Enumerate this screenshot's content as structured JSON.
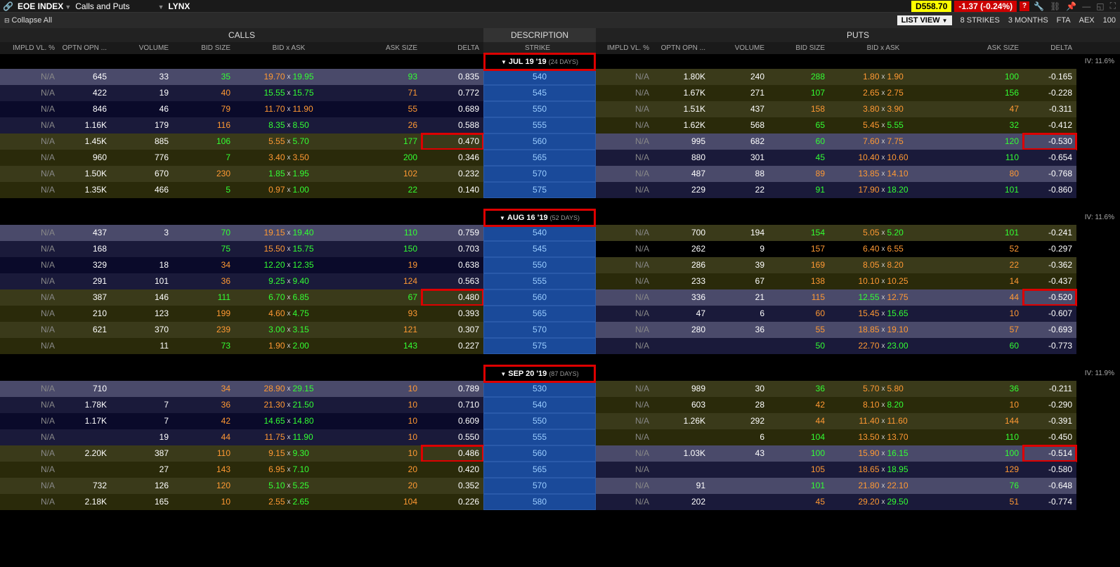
{
  "topbar": {
    "symbol": "EOE INDEX",
    "mode": "Calls and Puts",
    "broker": "LYNX",
    "price": "D558.70",
    "change": "-1.37 (-0.24%)"
  },
  "toolbar": {
    "collapse": "Collapse All",
    "listview": "LIST VIEW",
    "strikes": "8 STRIKES",
    "months": "3 MONTHS",
    "fta": "FTA",
    "aex": "AEX",
    "hundred": "100"
  },
  "headers": {
    "calls": "CALLS",
    "puts": "PUTS",
    "desc": "DESCRIPTION",
    "cols": {
      "iv": "IMPLD VL. %",
      "opn": "OPTN OPN ...",
      "vol": "VOLUME",
      "bsz": "BID SIZE",
      "ba": "BID x  ASK",
      "asz": "ASK SIZE",
      "del": "DELTA",
      "strike": "STRIKE"
    }
  },
  "expiries": [
    {
      "label": "JUL 19 '19",
      "days": "(24 DAYS)",
      "iv": "IV: 11.6%",
      "rows": [
        {
          "c": {
            "iv": "N/A",
            "opn": "645",
            "vol": "33",
            "bsz": "35",
            "bid": "19.70",
            "ask": "19.95",
            "asz": "93",
            "del": "0.835",
            "bg": "slate",
            "bc": "o",
            "ac": "g",
            "szc": "g"
          },
          "strike": "540",
          "p": {
            "iv": "N/A",
            "opn": "1.80K",
            "vol": "240",
            "bsz": "288",
            "bid": "1.80",
            "ask": "1.90",
            "asz": "100",
            "del": "-0.165",
            "bg": "olive",
            "bc": "o",
            "ac": "o",
            "szc": "g"
          }
        },
        {
          "c": {
            "iv": "N/A",
            "opn": "422",
            "vol": "19",
            "bsz": "40",
            "bid": "15.55",
            "ask": "15.75",
            "asz": "71",
            "del": "0.772",
            "bg": "navy",
            "bc": "g",
            "ac": "g",
            "szc": "o"
          },
          "strike": "545",
          "p": {
            "iv": "N/A",
            "opn": "1.67K",
            "vol": "271",
            "bsz": "107",
            "bid": "2.65",
            "ask": "2.75",
            "asz": "156",
            "del": "-0.228",
            "bg": "olive-d",
            "bc": "o",
            "ac": "o",
            "szc": "g"
          }
        },
        {
          "c": {
            "iv": "N/A",
            "opn": "846",
            "vol": "46",
            "bsz": "79",
            "bid": "11.70",
            "ask": "11.90",
            "asz": "55",
            "del": "0.689",
            "bg": "navy-d",
            "bc": "o",
            "ac": "o",
            "szc": "o"
          },
          "strike": "550",
          "p": {
            "iv": "N/A",
            "opn": "1.51K",
            "vol": "437",
            "bsz": "158",
            "bid": "3.80",
            "ask": "3.90",
            "asz": "47",
            "del": "-0.311",
            "bg": "olive",
            "bc": "o",
            "ac": "o",
            "szc": "o"
          }
        },
        {
          "c": {
            "iv": "N/A",
            "opn": "1.16K",
            "vol": "179",
            "bsz": "116",
            "bid": "8.35",
            "ask": "8.50",
            "asz": "26",
            "del": "0.588",
            "bg": "navy",
            "bc": "g",
            "ac": "g",
            "szc": "o"
          },
          "strike": "555",
          "p": {
            "iv": "N/A",
            "opn": "1.62K",
            "vol": "568",
            "bsz": "65",
            "bid": "5.45",
            "ask": "5.55",
            "asz": "32",
            "del": "-0.412",
            "bg": "olive-d",
            "bc": "o",
            "ac": "g",
            "szc": "g"
          }
        },
        {
          "c": {
            "iv": "N/A",
            "opn": "1.45K",
            "vol": "885",
            "bsz": "106",
            "bid": "5.55",
            "ask": "5.70",
            "asz": "177",
            "del": "0.470",
            "bg": "olive",
            "bc": "o",
            "ac": "g",
            "szc": "g",
            "hlDel": true
          },
          "strike": "560",
          "p": {
            "iv": "N/A",
            "opn": "995",
            "vol": "682",
            "bsz": "60",
            "bid": "7.60",
            "ask": "7.75",
            "asz": "120",
            "del": "-0.530",
            "bg": "slate",
            "bc": "o",
            "ac": "o",
            "szc": "g",
            "hlDel": true
          }
        },
        {
          "c": {
            "iv": "N/A",
            "opn": "960",
            "vol": "776",
            "bsz": "7",
            "bid": "3.40",
            "ask": "3.50",
            "asz": "200",
            "del": "0.346",
            "bg": "olive-d",
            "bc": "o",
            "ac": "o",
            "szc": "g"
          },
          "strike": "565",
          "p": {
            "iv": "N/A",
            "opn": "880",
            "vol": "301",
            "bsz": "45",
            "bid": "10.40",
            "ask": "10.60",
            "asz": "110",
            "del": "-0.654",
            "bg": "navy",
            "bc": "o",
            "ac": "o",
            "szc": "g"
          }
        },
        {
          "c": {
            "iv": "N/A",
            "opn": "1.50K",
            "vol": "670",
            "bsz": "230",
            "bid": "1.85",
            "ask": "1.95",
            "asz": "102",
            "del": "0.232",
            "bg": "olive",
            "bc": "g",
            "ac": "g",
            "szc": "o"
          },
          "strike": "570",
          "p": {
            "iv": "N/A",
            "opn": "487",
            "vol": "88",
            "bsz": "89",
            "bid": "13.85",
            "ask": "14.10",
            "asz": "80",
            "del": "-0.768",
            "bg": "slate",
            "bc": "o",
            "ac": "o",
            "szc": "o"
          }
        },
        {
          "c": {
            "iv": "N/A",
            "opn": "1.35K",
            "vol": "466",
            "bsz": "5",
            "bid": "0.97",
            "ask": "1.00",
            "asz": "22",
            "del": "0.140",
            "bg": "olive-d",
            "bc": "o",
            "ac": "g",
            "szc": "g"
          },
          "strike": "575",
          "p": {
            "iv": "N/A",
            "opn": "229",
            "vol": "22",
            "bsz": "91",
            "bid": "17.90",
            "ask": "18.20",
            "asz": "101",
            "del": "-0.860",
            "bg": "navy",
            "bc": "o",
            "ac": "g",
            "szc": "g"
          }
        }
      ]
    },
    {
      "label": "AUG 16 '19",
      "days": "(52 DAYS)",
      "iv": "IV: 11.6%",
      "rows": [
        {
          "c": {
            "iv": "N/A",
            "opn": "437",
            "vol": "3",
            "bsz": "70",
            "bid": "19.15",
            "ask": "19.40",
            "asz": "110",
            "del": "0.759",
            "bg": "slate",
            "bc": "o",
            "ac": "g",
            "szc": "g"
          },
          "strike": "540",
          "p": {
            "iv": "N/A",
            "opn": "700",
            "vol": "194",
            "bsz": "154",
            "bid": "5.05",
            "ask": "5.20",
            "asz": "101",
            "del": "-0.241",
            "bg": "olive",
            "bc": "o",
            "ac": "g",
            "szc": "g"
          }
        },
        {
          "c": {
            "iv": "N/A",
            "opn": "168",
            "vol": "",
            "bsz": "75",
            "bid": "15.50",
            "ask": "15.75",
            "asz": "150",
            "del": "0.703",
            "bg": "navy",
            "bc": "o",
            "ac": "g",
            "szc": "g"
          },
          "strike": "545",
          "p": {
            "iv": "N/A",
            "opn": "262",
            "vol": "9",
            "bsz": "157",
            "bid": "6.40",
            "ask": "6.55",
            "asz": "52",
            "del": "-0.297",
            "bg": "black",
            "bc": "o",
            "ac": "o",
            "szc": "o"
          }
        },
        {
          "c": {
            "iv": "N/A",
            "opn": "329",
            "vol": "18",
            "bsz": "34",
            "bid": "12.20",
            "ask": "12.35",
            "asz": "19",
            "del": "0.638",
            "bg": "navy-d",
            "bc": "g",
            "ac": "g",
            "szc": "o"
          },
          "strike": "550",
          "p": {
            "iv": "N/A",
            "opn": "286",
            "vol": "39",
            "bsz": "169",
            "bid": "8.05",
            "ask": "8.20",
            "asz": "22",
            "del": "-0.362",
            "bg": "olive",
            "bc": "o",
            "ac": "o",
            "szc": "o"
          }
        },
        {
          "c": {
            "iv": "N/A",
            "opn": "291",
            "vol": "101",
            "bsz": "36",
            "bid": "9.25",
            "ask": "9.40",
            "asz": "124",
            "del": "0.563",
            "bg": "navy",
            "bc": "g",
            "ac": "g",
            "szc": "o"
          },
          "strike": "555",
          "p": {
            "iv": "N/A",
            "opn": "233",
            "vol": "67",
            "bsz": "138",
            "bid": "10.10",
            "ask": "10.25",
            "asz": "14",
            "del": "-0.437",
            "bg": "olive-d",
            "bc": "o",
            "ac": "o",
            "szc": "o"
          }
        },
        {
          "c": {
            "iv": "N/A",
            "opn": "387",
            "vol": "146",
            "bsz": "111",
            "bid": "6.70",
            "ask": "6.85",
            "asz": "67",
            "del": "0.480",
            "bg": "olive",
            "bc": "g",
            "ac": "g",
            "szc": "g",
            "hlDel": true
          },
          "strike": "560",
          "p": {
            "iv": "N/A",
            "opn": "336",
            "vol": "21",
            "bsz": "115",
            "bid": "12.55",
            "ask": "12.75",
            "asz": "44",
            "del": "-0.520",
            "bg": "slate",
            "bc": "g",
            "ac": "o",
            "szc": "o",
            "hlDel": true
          }
        },
        {
          "c": {
            "iv": "N/A",
            "opn": "210",
            "vol": "123",
            "bsz": "199",
            "bid": "4.60",
            "ask": "4.75",
            "asz": "93",
            "del": "0.393",
            "bg": "olive-d",
            "bc": "o",
            "ac": "g",
            "szc": "o"
          },
          "strike": "565",
          "p": {
            "iv": "N/A",
            "opn": "47",
            "vol": "6",
            "bsz": "60",
            "bid": "15.45",
            "ask": "15.65",
            "asz": "10",
            "del": "-0.607",
            "bg": "navy",
            "bc": "o",
            "ac": "g",
            "szc": "o"
          }
        },
        {
          "c": {
            "iv": "N/A",
            "opn": "621",
            "vol": "370",
            "bsz": "239",
            "bid": "3.00",
            "ask": "3.15",
            "asz": "121",
            "del": "0.307",
            "bg": "olive",
            "bc": "g",
            "ac": "g",
            "szc": "o"
          },
          "strike": "570",
          "p": {
            "iv": "N/A",
            "opn": "280",
            "vol": "36",
            "bsz": "55",
            "bid": "18.85",
            "ask": "19.10",
            "asz": "57",
            "del": "-0.693",
            "bg": "slate",
            "bc": "o",
            "ac": "o",
            "szc": "o"
          }
        },
        {
          "c": {
            "iv": "N/A",
            "opn": "",
            "vol": "11",
            "bsz": "73",
            "bid": "1.90",
            "ask": "2.00",
            "asz": "143",
            "del": "0.227",
            "bg": "olive-d",
            "bc": "o",
            "ac": "g",
            "szc": "g"
          },
          "strike": "575",
          "p": {
            "iv": "N/A",
            "opn": "",
            "vol": "",
            "bsz": "50",
            "bid": "22.70",
            "ask": "23.00",
            "asz": "60",
            "del": "-0.773",
            "bg": "navy",
            "bc": "o",
            "ac": "g",
            "szc": "g"
          }
        }
      ]
    },
    {
      "label": "SEP 20 '19",
      "days": "(87 DAYS)",
      "iv": "IV: 11.9%",
      "rows": [
        {
          "c": {
            "iv": "N/A",
            "opn": "710",
            "vol": "",
            "bsz": "34",
            "bid": "28.90",
            "ask": "29.15",
            "asz": "10",
            "del": "0.789",
            "bg": "slate",
            "bc": "o",
            "ac": "g",
            "szc": "o"
          },
          "strike": "530",
          "p": {
            "iv": "N/A",
            "opn": "989",
            "vol": "30",
            "bsz": "36",
            "bid": "5.70",
            "ask": "5.80",
            "asz": "36",
            "del": "-0.211",
            "bg": "olive",
            "bc": "o",
            "ac": "o",
            "szc": "g"
          }
        },
        {
          "c": {
            "iv": "N/A",
            "opn": "1.78K",
            "vol": "7",
            "bsz": "36",
            "bid": "21.30",
            "ask": "21.50",
            "asz": "10",
            "del": "0.710",
            "bg": "navy",
            "bc": "o",
            "ac": "g",
            "szc": "o"
          },
          "strike": "540",
          "p": {
            "iv": "N/A",
            "opn": "603",
            "vol": "28",
            "bsz": "42",
            "bid": "8.10",
            "ask": "8.20",
            "asz": "10",
            "del": "-0.290",
            "bg": "olive-d",
            "bc": "o",
            "ac": "g",
            "szc": "o"
          }
        },
        {
          "c": {
            "iv": "N/A",
            "opn": "1.17K",
            "vol": "7",
            "bsz": "42",
            "bid": "14.65",
            "ask": "14.80",
            "asz": "10",
            "del": "0.609",
            "bg": "navy-d",
            "bc": "g",
            "ac": "g",
            "szc": "o"
          },
          "strike": "550",
          "p": {
            "iv": "N/A",
            "opn": "1.26K",
            "vol": "292",
            "bsz": "44",
            "bid": "11.40",
            "ask": "11.60",
            "asz": "144",
            "del": "-0.391",
            "bg": "olive",
            "bc": "o",
            "ac": "o",
            "szc": "o"
          }
        },
        {
          "c": {
            "iv": "N/A",
            "opn": "",
            "vol": "19",
            "bsz": "44",
            "bid": "11.75",
            "ask": "11.90",
            "asz": "10",
            "del": "0.550",
            "bg": "navy",
            "bc": "o",
            "ac": "g",
            "szc": "o"
          },
          "strike": "555",
          "p": {
            "iv": "N/A",
            "opn": "",
            "vol": "6",
            "bsz": "104",
            "bid": "13.50",
            "ask": "13.70",
            "asz": "110",
            "del": "-0.450",
            "bg": "olive-d",
            "bc": "o",
            "ac": "o",
            "szc": "g"
          }
        },
        {
          "c": {
            "iv": "N/A",
            "opn": "2.20K",
            "vol": "387",
            "bsz": "110",
            "bid": "9.15",
            "ask": "9.30",
            "asz": "10",
            "del": "0.486",
            "bg": "olive",
            "bc": "o",
            "ac": "g",
            "szc": "o",
            "hlDel": true
          },
          "strike": "560",
          "p": {
            "iv": "N/A",
            "opn": "1.03K",
            "vol": "43",
            "bsz": "100",
            "bid": "15.90",
            "ask": "16.15",
            "asz": "100",
            "del": "-0.514",
            "bg": "slate",
            "bc": "o",
            "ac": "g",
            "szc": "g",
            "hlDel": true
          }
        },
        {
          "c": {
            "iv": "N/A",
            "opn": "",
            "vol": "27",
            "bsz": "143",
            "bid": "6.95",
            "ask": "7.10",
            "asz": "20",
            "del": "0.420",
            "bg": "olive-d",
            "bc": "o",
            "ac": "g",
            "szc": "o"
          },
          "strike": "565",
          "p": {
            "iv": "N/A",
            "opn": "",
            "vol": "",
            "bsz": "105",
            "bid": "18.65",
            "ask": "18.95",
            "asz": "129",
            "del": "-0.580",
            "bg": "navy",
            "bc": "o",
            "ac": "g",
            "szc": "o"
          }
        },
        {
          "c": {
            "iv": "N/A",
            "opn": "732",
            "vol": "126",
            "bsz": "120",
            "bid": "5.10",
            "ask": "5.25",
            "asz": "20",
            "del": "0.352",
            "bg": "olive",
            "bc": "g",
            "ac": "g",
            "szc": "o"
          },
          "strike": "570",
          "p": {
            "iv": "N/A",
            "opn": "91",
            "vol": "",
            "bsz": "101",
            "bid": "21.80",
            "ask": "22.10",
            "asz": "76",
            "del": "-0.648",
            "bg": "slate",
            "bc": "o",
            "ac": "o",
            "szc": "g"
          }
        },
        {
          "c": {
            "iv": "N/A",
            "opn": "2.18K",
            "vol": "165",
            "bsz": "10",
            "bid": "2.55",
            "ask": "2.65",
            "asz": "104",
            "del": "0.226",
            "bg": "olive-d",
            "bc": "o",
            "ac": "g",
            "szc": "o"
          },
          "strike": "580",
          "p": {
            "iv": "N/A",
            "opn": "202",
            "vol": "",
            "bsz": "45",
            "bid": "29.20",
            "ask": "29.50",
            "asz": "51",
            "del": "-0.774",
            "bg": "navy",
            "bc": "o",
            "ac": "g",
            "szc": "o"
          }
        }
      ]
    }
  ]
}
